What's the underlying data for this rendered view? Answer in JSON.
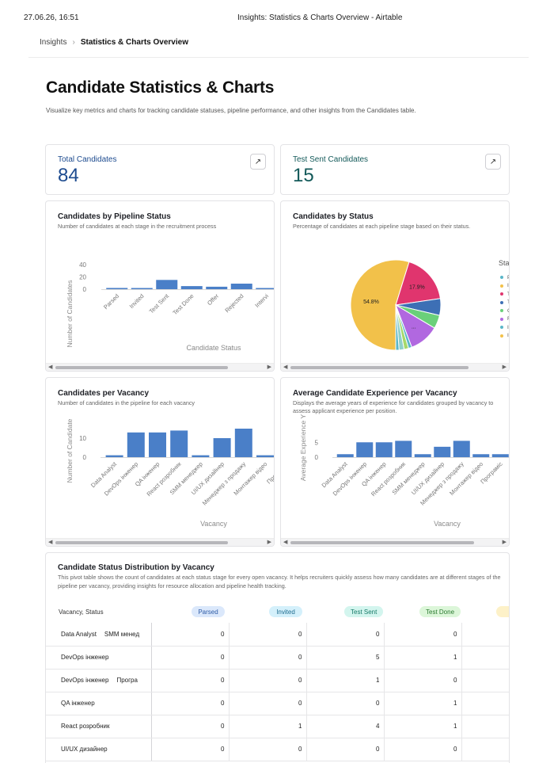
{
  "print_header": {
    "date": "27.06.26, 16:51",
    "title": "Insights: Statistics & Charts Overview - Airtable"
  },
  "breadcrumb": {
    "root": "Insights",
    "separator": "›",
    "current": "Statistics & Charts Overview"
  },
  "page": {
    "title": "Candidate Statistics & Charts",
    "description": "Visualize key metrics and charts for tracking candidate statuses, pipeline performance, and other insights from the Candidates table."
  },
  "kpis": [
    {
      "label": "Total Candidates",
      "value": "84",
      "color": "#1d4b8f",
      "open_icon": "↗"
    },
    {
      "label": "Test Sent Candidates",
      "value": "15",
      "color": "#145a5a",
      "open_icon": "↗"
    }
  ],
  "pipeline_chart": {
    "title": "Candidates by Pipeline Status",
    "subtitle": "Number of candidates at each stage in the recruitment process",
    "y_label": "Number of Candidates",
    "x_label": "Candidate Status",
    "y_ticks": [
      "40",
      "20",
      "0"
    ]
  },
  "status_chart": {
    "title": "Candidates by Status",
    "subtitle": "Percentage of candidates at each pipeline stage based on their status.",
    "legend_title": "Sta",
    "legend_items": [
      {
        "label": "P",
        "color": "#5ab6c8"
      },
      {
        "label": "I",
        "color": "#f2c14a"
      },
      {
        "label": "T",
        "color": "#e0356e"
      },
      {
        "label": "T",
        "color": "#3d6fb5"
      },
      {
        "label": "C",
        "color": "#6ad07a"
      },
      {
        "label": "F",
        "color": "#b168e0"
      },
      {
        "label": "I",
        "color": "#5ab6c8"
      },
      {
        "label": "I",
        "color": "#f2c14a"
      }
    ]
  },
  "vacancy_chart": {
    "title": "Candidates per Vacancy",
    "subtitle": "Number of candidates in the pipeline for each vacancy",
    "y_label": "Number of Candidate",
    "x_label": "Vacancy",
    "y_ticks": [
      "10",
      "0"
    ]
  },
  "experience_chart": {
    "title": "Average Candidate Experience per Vacancy",
    "subtitle": "Displays the average years of experience for candidates grouped by vacancy to assess applicant experience per position.",
    "y_label": "Average Experience Y",
    "x_label": "Vacancy",
    "y_ticks": [
      "5",
      "0"
    ]
  },
  "chart_data": [
    {
      "type": "bar",
      "title": "Candidates by Pipeline Status",
      "xlabel": "Candidate Status",
      "ylabel": "Number of Candidates",
      "categories": [
        "Parsed",
        "Invited",
        "Test Sent",
        "Test Done",
        "Offer",
        "Rejected",
        "Intervi"
      ],
      "values": [
        2,
        1,
        15,
        5,
        4,
        9,
        1
      ],
      "ylim": [
        0,
        50
      ]
    },
    {
      "type": "pie",
      "title": "Candidates by Status",
      "slices": [
        {
          "label": "I",
          "value": 54.8,
          "color": "#f2c14a",
          "data_label": "54.8%"
        },
        {
          "label": "T",
          "value": 17.9,
          "color": "#e0356e",
          "data_label": "17.9%"
        },
        {
          "label": "T",
          "value": 6,
          "color": "#3d6fb5",
          "data_label": ""
        },
        {
          "label": "C",
          "value": 4.8,
          "color": "#6ad07a",
          "data_label": ""
        },
        {
          "label": "F",
          "value": 10.7,
          "color": "#b168e0",
          "data_label": "..."
        },
        {
          "label": "P",
          "value": 1.2,
          "color": "#5ab6c8",
          "data_label": ""
        },
        {
          "label": "I",
          "value": 1.6,
          "color": "#a5d86a",
          "data_label": ""
        },
        {
          "label": "P",
          "value": 1.8,
          "color": "#8fd0c8",
          "data_label": ""
        },
        {
          "label": "I",
          "value": 1.2,
          "color": "#5ab6c8",
          "data_label": ""
        }
      ]
    },
    {
      "type": "bar",
      "title": "Candidates per Vacancy",
      "xlabel": "Vacancy",
      "ylabel": "Number of Candidate",
      "categories": [
        "Data Analyst",
        "DevOps інженер",
        "QA інженер",
        "React розробник",
        "SMM менеджер",
        "UI/UX дизайнер",
        "Менеджер з продажу",
        "Монтажер відео",
        "Програміс",
        "Пр"
      ],
      "values": [
        1,
        13,
        13,
        14,
        1,
        10,
        15,
        1,
        1,
        0
      ],
      "ylim": [
        0,
        20
      ]
    },
    {
      "type": "bar",
      "title": "Average Candidate Experience per Vacancy",
      "xlabel": "Vacancy",
      "ylabel": "Average Experience Y",
      "categories": [
        "Data Analyst",
        "DevOps інженер",
        "QA інженер",
        "React розробник",
        "SMM менеджер",
        "UI/UX дизайнер",
        "Менеджер з продажу",
        "Монтажер відео",
        "Програміс",
        "Пр"
      ],
      "values": [
        1,
        5,
        5,
        5.5,
        1,
        3.5,
        5.5,
        1,
        1,
        0
      ],
      "ylim": [
        0,
        8
      ]
    }
  ],
  "pivot": {
    "title": "Candidate Status Distribution by Vacancy",
    "description": "This pivot table shows the count of candidates at each status stage for every open vacancy. It helps recruiters quickly assess how many candidates are at different stages of the pipeline per vacancy, providing insights for resource allocation and pipeline health tracking.",
    "header_label": "Vacancy, Status",
    "columns": [
      {
        "label": "Parsed",
        "bg": "#dbe8fb",
        "fg": "#2f5ca6"
      },
      {
        "label": "Invited",
        "bg": "#d4f0fb",
        "fg": "#1f6c8f"
      },
      {
        "label": "Test Sent",
        "bg": "#d3f5ee",
        "fg": "#167a68"
      },
      {
        "label": "Test Done",
        "bg": "#dcf6d9",
        "fg": "#2a7a30"
      },
      {
        "label": "",
        "bg": "#fdf1c8",
        "fg": "#8a6a10"
      }
    ],
    "rows": [
      {
        "label": "Data Analyst",
        "label2": "SMM менед",
        "values": [
          "0",
          "0",
          "0",
          "0"
        ]
      },
      {
        "label": "DevOps інженер",
        "label2": "",
        "values": [
          "0",
          "0",
          "5",
          "1"
        ]
      },
      {
        "label": "DevOps інженер",
        "label2": "Програ",
        "values": [
          "0",
          "0",
          "1",
          "0"
        ]
      },
      {
        "label": "QA інженер",
        "label2": "",
        "values": [
          "0",
          "0",
          "0",
          "1"
        ]
      },
      {
        "label": "React розробник",
        "label2": "",
        "values": [
          "0",
          "1",
          "4",
          "1"
        ]
      },
      {
        "label": "UI/UX дизайнер",
        "label2": "",
        "values": [
          "0",
          "0",
          "0",
          "0"
        ]
      }
    ]
  }
}
